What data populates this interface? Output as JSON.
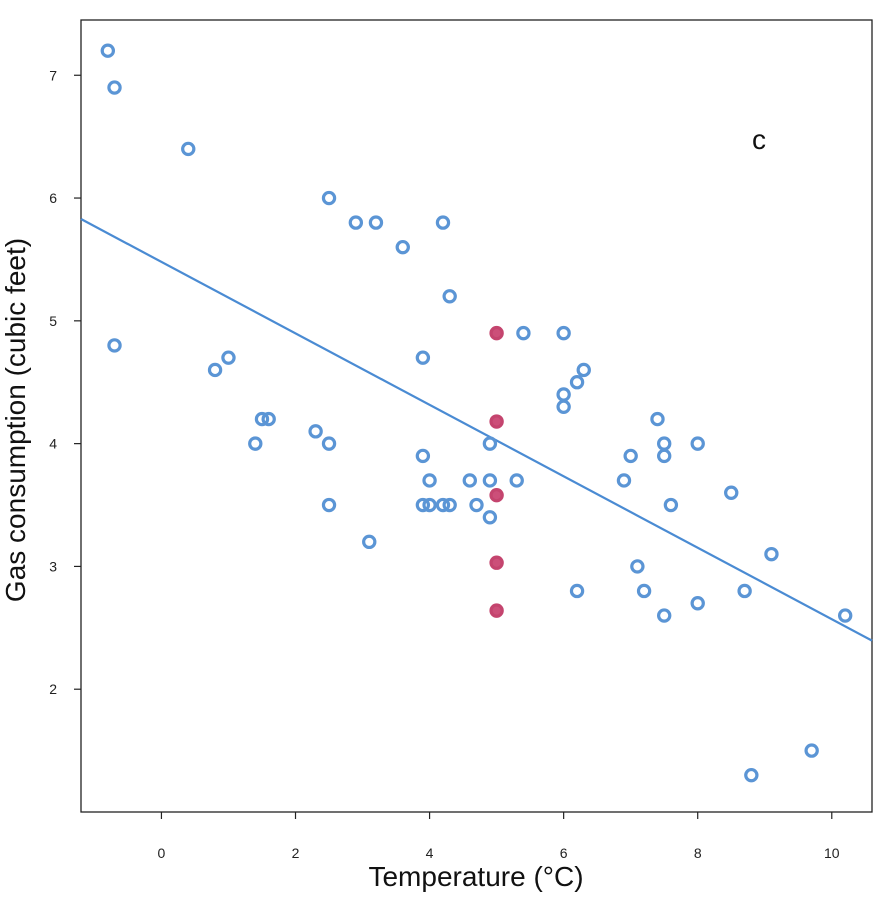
{
  "chart_data": {
    "type": "scatter",
    "title": "",
    "panel_label": "c",
    "xlabel": "Temperature (°C)",
    "ylabel": "Gas consumption (cubic feet)",
    "xlim": [
      -1.2,
      10.6
    ],
    "ylim": [
      1.0,
      7.45
    ],
    "xticks": [
      0,
      2,
      4,
      6,
      8,
      10
    ],
    "yticks": [
      2,
      3,
      4,
      5,
      6,
      7
    ],
    "grid": false,
    "colors": {
      "points": "#5b95d5",
      "highlight": "#c4446e",
      "highlight_fill": "#cc4f79",
      "line": "#4a8bd3"
    },
    "series": [
      {
        "name": "observations",
        "x": [
          -0.8,
          -0.7,
          0.4,
          -0.7,
          0.8,
          1.0,
          1.4,
          1.5,
          1.6,
          2.3,
          2.5,
          2.5,
          2.5,
          2.9,
          3.1,
          3.2,
          3.6,
          3.9,
          3.9,
          3.9,
          4.0,
          4.0,
          4.2,
          4.2,
          4.3,
          4.3,
          4.6,
          4.7,
          4.9,
          4.9,
          4.9,
          5.3,
          5.4,
          6.0,
          6.0,
          6.0,
          6.2,
          6.2,
          6.3,
          6.9,
          7.0,
          7.1,
          7.2,
          7.4,
          7.5,
          7.5,
          7.5,
          7.6,
          8.0,
          8.0,
          8.5,
          8.7,
          8.8,
          9.1,
          9.7,
          10.2
        ],
        "y": [
          7.2,
          6.9,
          6.4,
          4.8,
          4.6,
          4.7,
          4.0,
          4.2,
          4.2,
          4.1,
          6.0,
          4.0,
          3.5,
          5.8,
          3.2,
          5.8,
          5.6,
          4.7,
          3.9,
          3.5,
          3.7,
          3.5,
          5.8,
          3.5,
          5.2,
          3.5,
          3.7,
          3.5,
          4.0,
          3.7,
          3.4,
          3.7,
          4.9,
          4.9,
          4.4,
          4.3,
          4.5,
          2.8,
          4.6,
          3.7,
          3.9,
          3.0,
          2.8,
          4.2,
          4.0,
          3.9,
          2.6,
          3.5,
          4.0,
          2.7,
          3.6,
          2.8,
          1.3,
          3.1,
          1.5,
          2.6
        ]
      },
      {
        "name": "highlighted at 5°C",
        "x": [
          5.0,
          5.0,
          5.0,
          5.0,
          5.0
        ],
        "y": [
          4.9,
          4.18,
          3.58,
          3.03,
          2.64
        ]
      }
    ],
    "fit_line": {
      "intercept": 5.48,
      "slope": -0.291
    }
  }
}
